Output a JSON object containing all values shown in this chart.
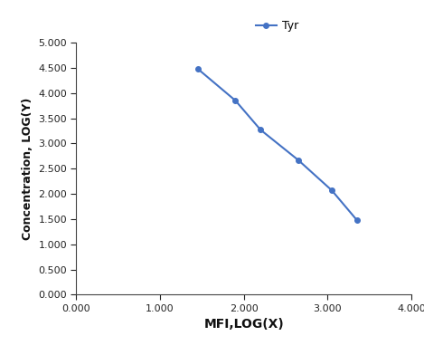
{
  "x": [
    1.45,
    1.9,
    2.2,
    2.65,
    3.05,
    3.35
  ],
  "y": [
    4.48,
    3.85,
    3.27,
    2.67,
    2.07,
    1.48
  ],
  "line_color": "#4472C4",
  "marker": "o",
  "marker_size": 4,
  "line_width": 1.5,
  "label": "Tyr",
  "xlabel": "MFI,LOG(X)",
  "ylabel": "Concentration, LOG(Y)",
  "xlim": [
    0.0,
    4.0
  ],
  "ylim": [
    0.0,
    5.0
  ],
  "xticks": [
    0.0,
    1.0,
    2.0,
    3.0,
    4.0
  ],
  "yticks": [
    0.0,
    0.5,
    1.0,
    1.5,
    2.0,
    2.5,
    3.0,
    3.5,
    4.0,
    4.5,
    5.0
  ],
  "background_color": "#ffffff",
  "xlabel_fontsize": 10,
  "ylabel_fontsize": 9,
  "tick_fontsize": 8,
  "legend_fontsize": 9,
  "tick_color": "#222222",
  "spine_color": "#444444",
  "label_color": "#111111"
}
